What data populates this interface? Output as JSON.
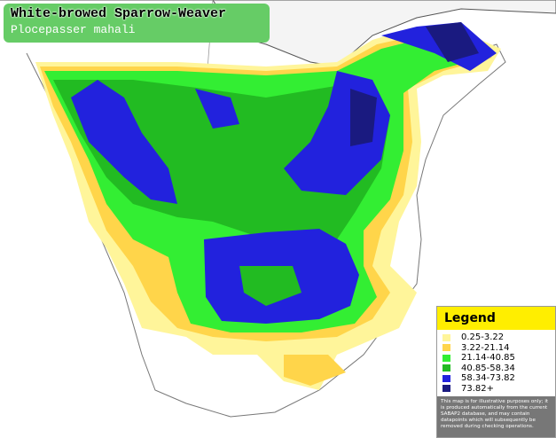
{
  "header": {
    "title": "White-browed Sparrow-Weaver",
    "subtitle": "Plocepasser mahali"
  },
  "legend": {
    "title": "Legend",
    "items": [
      {
        "label": "0.25-3.22",
        "color": "#fff59a"
      },
      {
        "label": "3.22-21.14",
        "color": "#ffd54a"
      },
      {
        "label": "21.14-40.85",
        "color": "#33ee33"
      },
      {
        "label": "40.85-58.34",
        "color": "#22bb22"
      },
      {
        "label": "58.34-73.82",
        "color": "#2222dd"
      },
      {
        "label": "73.82+",
        "color": "#1a1a80"
      }
    ],
    "note": "This map is for illustrative purposes only; it is produced automatically from the current SABAP2 database, and may contain datapoints which will subsequently be removed during checking operations."
  }
}
